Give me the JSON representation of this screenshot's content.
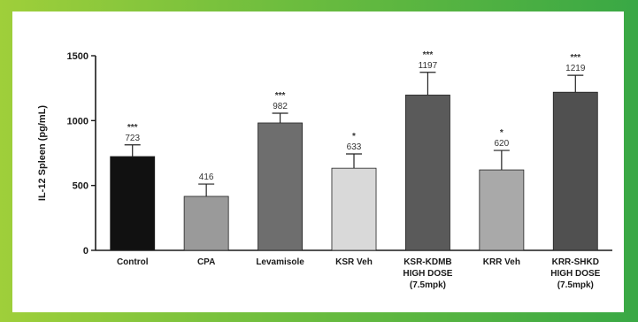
{
  "colors": {
    "page_gradient": [
      "#9fcf3a",
      "#6dbd3e",
      "#39a845"
    ],
    "panel_background": "#ffffff",
    "axis": "#1a1a1a"
  },
  "chart_data": {
    "type": "bar",
    "title": "",
    "ylabel": "IL-12 Spleen (pg/mL)",
    "xlabel": "",
    "ylim": [
      0,
      1500
    ],
    "yticks": [
      "0",
      "500",
      "1000",
      "1500"
    ],
    "grid": false,
    "categories": [
      [
        "Control"
      ],
      [
        "CPA"
      ],
      [
        "Levamisole"
      ],
      [
        "KSR Veh"
      ],
      [
        "KSR-KDMB",
        "HIGH DOSE",
        "(7.5mpk)"
      ],
      [
        "KRR Veh"
      ],
      [
        "KRR-SHKD",
        "HIGH DOSE",
        "(7.5mpk)"
      ]
    ],
    "values": [
      723,
      416,
      982,
      633,
      1197,
      620,
      1219
    ],
    "value_labels": [
      "723",
      "416",
      "982",
      "633",
      "1197",
      "620",
      "1219"
    ],
    "error": [
      90,
      95,
      75,
      110,
      175,
      150,
      130
    ],
    "significance": [
      "***",
      "",
      "***",
      "*",
      "***",
      "*",
      "***"
    ],
    "bar_colors": [
      "#111111",
      "#9a9a9a",
      "#6e6e6e",
      "#d9d9d9",
      "#5a5a5a",
      "#a9a9a9",
      "#505050"
    ]
  }
}
